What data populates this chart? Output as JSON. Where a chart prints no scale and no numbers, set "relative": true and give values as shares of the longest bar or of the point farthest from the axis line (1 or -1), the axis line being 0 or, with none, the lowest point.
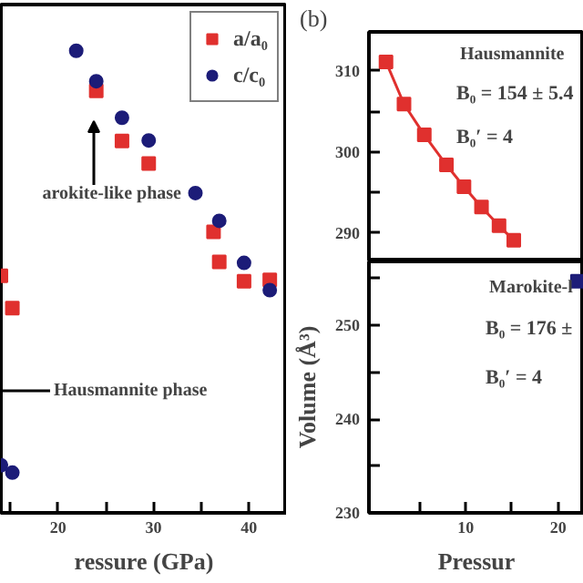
{
  "chart_data": [
    {
      "type": "scatter",
      "relative": true,
      "xlabel": "ressure (GPa)",
      "xlim": [
        14,
        44
      ],
      "xticks": [
        {
          "value": 15,
          "label": null
        },
        20,
        {
          "value": 25,
          "label": null
        },
        30,
        {
          "value": 35,
          "label": null
        },
        40
      ],
      "legend": "top right",
      "grid": false,
      "annotations": [
        "arokite-like phase",
        "Hausmannite phase"
      ],
      "series": [
        {
          "name": "a/a₀",
          "color": "#e0302e",
          "marker": "square",
          "x": [
            14.0,
            15.2,
            24.0,
            26.7,
            29.5,
            36.3,
            36.9,
            39.5,
            42.2
          ],
          "values": [
            0.513,
            0.443,
            0.913,
            0.805,
            0.756,
            0.608,
            0.543,
            0.501,
            0.504
          ]
        },
        {
          "name": "c/c₀",
          "color": "#1c1c78",
          "marker": "circle",
          "x": [
            14.0,
            15.2,
            21.9,
            24.0,
            26.7,
            29.5,
            34.4,
            36.9,
            39.5,
            42.2
          ],
          "values": [
            0.103,
            0.087,
            1.0,
            0.934,
            0.855,
            0.806,
            0.692,
            0.632,
            0.541,
            0.482
          ]
        }
      ]
    },
    {
      "type": "line",
      "xlim": [
        -0.5,
        22.8
      ],
      "ylim": [
        286.5,
        314.8
      ],
      "yticks": [
        290,
        {
          "value": 295,
          "label": null
        },
        300,
        {
          "value": 305,
          "label": null
        },
        310
      ],
      "grid": false,
      "annotations": [
        "(b)",
        "Hausmannite",
        "B₀ = 154 ± 5.4",
        "B₀′ = 4"
      ],
      "series": [
        {
          "color": "#e0302e",
          "marker": "square",
          "x": [
            1.35,
            3.3,
            5.5,
            7.9,
            9.8,
            11.7,
            13.6,
            15.2
          ],
          "values": [
            311.1,
            305.9,
            302.1,
            298.4,
            295.7,
            293.2,
            290.9,
            289.1
          ]
        }
      ]
    },
    {
      "type": "scatter",
      "xlim": [
        -0.5,
        22.8
      ],
      "ylim": [
        230,
        256.8
      ],
      "xticks": [
        {
          "value": 5,
          "label": null
        },
        10,
        {
          "value": 15,
          "label": null
        },
        20
      ],
      "yticks": [
        230,
        {
          "value": 235,
          "label": null
        },
        240,
        {
          "value": 245,
          "label": null
        },
        250,
        {
          "value": 255,
          "label": null
        }
      ],
      "xlabel": "Pressur",
      "ylabel": "Volume (Å³)",
      "grid": false,
      "annotations": [
        "Marokite-l",
        "B₀ = 176 ±",
        "B₀′ = 4"
      ],
      "series": [
        {
          "color": "#1c1c78",
          "marker": "square",
          "x": [
            22.1
          ],
          "values": [
            254.7
          ]
        }
      ]
    }
  ]
}
